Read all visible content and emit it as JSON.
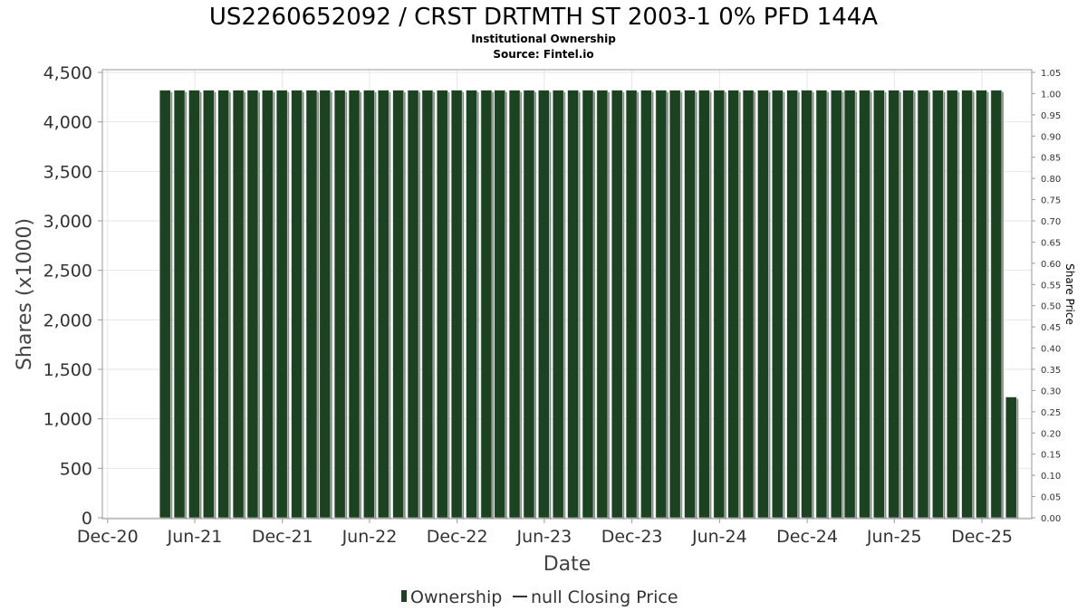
{
  "chart_data": {
    "type": "bar",
    "title": "US2260652092 / CRST DRTMTH ST 2003-1 0% PFD 144A",
    "subtitle_lines": [
      "Institutional Ownership",
      "Source: Fintel.io"
    ],
    "xlabel": "Date",
    "ylabel": "Shares (x1000)",
    "y2label": "Share Price",
    "ylim": [
      0,
      4500
    ],
    "y2lim": [
      0,
      1.05
    ],
    "xlim": [
      "2020-11-20",
      "2026-03-15"
    ],
    "yticks": [
      "0",
      "500",
      "1,000",
      "1,500",
      "2,000",
      "2,500",
      "3,000",
      "3,500",
      "4,000",
      "4,500"
    ],
    "y2ticks": [
      "0.00",
      "0.05",
      "0.10",
      "0.15",
      "0.20",
      "0.25",
      "0.30",
      "0.35",
      "0.40",
      "0.45",
      "0.50",
      "0.55",
      "0.60",
      "0.65",
      "0.70",
      "0.75",
      "0.80",
      "0.85",
      "0.90",
      "0.95",
      "1.00",
      "1.05"
    ],
    "xticks": [
      {
        "label": "Dec-20",
        "date": "2020-12-01"
      },
      {
        "label": "Jun-21",
        "date": "2021-06-01"
      },
      {
        "label": "Dec-21",
        "date": "2021-12-01"
      },
      {
        "label": "Jun-22",
        "date": "2022-06-01"
      },
      {
        "label": "Dec-22",
        "date": "2022-12-01"
      },
      {
        "label": "Jun-23",
        "date": "2023-06-01"
      },
      {
        "label": "Dec-23",
        "date": "2023-12-01"
      },
      {
        "label": "Jun-24",
        "date": "2024-06-01"
      },
      {
        "label": "Dec-24",
        "date": "2024-12-01"
      },
      {
        "label": "Jun-25",
        "date": "2025-06-01"
      },
      {
        "label": "Dec-25",
        "date": "2025-12-01"
      }
    ],
    "series": [
      {
        "name": "Ownership",
        "color": "#1b4322",
        "x": [
          "2021-03-31",
          "2021-04-30",
          "2021-05-31",
          "2021-06-30",
          "2021-07-31",
          "2021-08-31",
          "2021-09-30",
          "2021-10-31",
          "2021-11-30",
          "2021-12-31",
          "2022-01-31",
          "2022-02-28",
          "2022-03-31",
          "2022-04-30",
          "2022-05-31",
          "2022-06-30",
          "2022-07-31",
          "2022-08-31",
          "2022-09-30",
          "2022-10-31",
          "2022-11-30",
          "2022-12-31",
          "2023-01-31",
          "2023-02-28",
          "2023-03-31",
          "2023-04-30",
          "2023-05-31",
          "2023-06-30",
          "2023-07-31",
          "2023-08-31",
          "2023-09-30",
          "2023-10-31",
          "2023-11-30",
          "2023-12-31",
          "2024-01-31",
          "2024-02-29",
          "2024-03-31",
          "2024-04-30",
          "2024-05-31",
          "2024-06-30",
          "2024-07-31",
          "2024-08-31",
          "2024-09-30",
          "2024-10-31",
          "2024-11-30",
          "2024-12-31",
          "2025-01-31",
          "2025-02-28",
          "2025-03-31",
          "2025-04-30",
          "2025-05-31",
          "2025-06-30",
          "2025-07-31",
          "2025-08-31",
          "2025-09-30",
          "2025-10-31",
          "2025-11-30",
          "2025-12-31",
          "2026-01-31"
        ],
        "values": [
          4320,
          4320,
          4320,
          4320,
          4320,
          4320,
          4320,
          4320,
          4320,
          4320,
          4320,
          4320,
          4320,
          4320,
          4320,
          4320,
          4320,
          4320,
          4320,
          4320,
          4320,
          4320,
          4320,
          4320,
          4320,
          4320,
          4320,
          4320,
          4320,
          4320,
          4320,
          4320,
          4320,
          4320,
          4320,
          4320,
          4320,
          4320,
          4320,
          4320,
          4320,
          4320,
          4320,
          4320,
          4320,
          4320,
          4320,
          4320,
          4320,
          4320,
          4320,
          4320,
          4320,
          4320,
          4320,
          4320,
          4320,
          4320,
          1220
        ]
      }
    ],
    "legend": {
      "placement": "bottom",
      "items": [
        "Ownership",
        "null Closing Price"
      ]
    },
    "grid": true
  }
}
